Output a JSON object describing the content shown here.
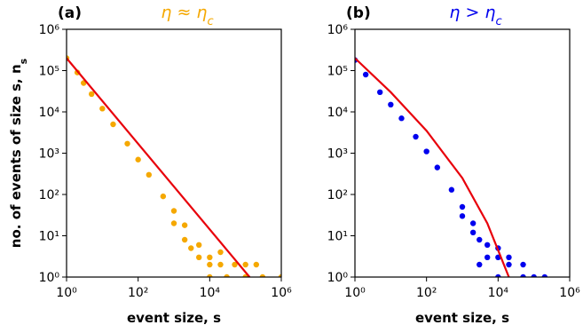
{
  "chart_data": [
    {
      "type": "scatter",
      "panel": "(a)",
      "title": [
        "η ≈ η",
        "c"
      ],
      "title_color": "#f5a800",
      "xlabel": "event size, s",
      "ylabel": [
        "no. of events of size s, n",
        "s"
      ],
      "log_x": true,
      "log_y": true,
      "xlim": [
        1,
        1000000
      ],
      "ylim": [
        1,
        1000000
      ],
      "xticks": [
        {
          "value": 1,
          "label": "10⁰"
        },
        {
          "value": 100,
          "label": "10²"
        },
        {
          "value": 10000,
          "label": "10⁴"
        },
        {
          "value": 1000000,
          "label": "10⁶"
        }
      ],
      "yticks": [
        {
          "value": 1,
          "label": "10⁰"
        },
        {
          "value": 10,
          "label": "10¹"
        },
        {
          "value": 100,
          "label": "10²"
        },
        {
          "value": 1000,
          "label": "10³"
        },
        {
          "value": 10000,
          "label": "10⁴"
        },
        {
          "value": 100000,
          "label": "10⁵"
        },
        {
          "value": 1000000,
          "label": "10⁶"
        }
      ],
      "series": [
        {
          "kind": "scatter",
          "color": "#f5a800",
          "x": [
            1,
            2,
            3,
            5,
            10,
            20,
            50,
            100,
            200,
            500,
            1000,
            1000,
            2000,
            2000,
            3000,
            5000,
            5000,
            10000,
            10000,
            20000,
            20000,
            50000,
            100000,
            200000,
            10000,
            30000,
            100000,
            300000,
            1000000
          ],
          "values": [
            200000,
            90000,
            50000,
            27000,
            12000,
            5000,
            1700,
            700,
            300,
            90,
            40,
            20,
            18,
            8,
            5,
            6,
            3,
            3,
            2,
            2,
            4,
            2,
            2,
            2,
            1,
            1,
            1,
            1,
            1
          ]
        },
        {
          "kind": "line",
          "color": "#e8000b",
          "x": [
            1,
            130000
          ],
          "values": [
            200000,
            1
          ]
        }
      ]
    },
    {
      "type": "scatter",
      "panel": "(b)",
      "title": [
        "η > η",
        "c"
      ],
      "title_color": "#0000ee",
      "xlabel": "event size, s",
      "log_x": true,
      "log_y": true,
      "xlim": [
        1,
        1000000
      ],
      "ylim": [
        1,
        1000000
      ],
      "xticks": [
        {
          "value": 1,
          "label": "10⁰"
        },
        {
          "value": 100,
          "label": "10²"
        },
        {
          "value": 10000,
          "label": "10⁴"
        },
        {
          "value": 1000000,
          "label": "10⁶"
        }
      ],
      "yticks": [
        {
          "value": 1,
          "label": "10⁰"
        },
        {
          "value": 10,
          "label": "10¹"
        },
        {
          "value": 100,
          "label": "10²"
        },
        {
          "value": 1000,
          "label": "10³"
        },
        {
          "value": 10000,
          "label": "10⁴"
        },
        {
          "value": 100000,
          "label": "10⁵"
        },
        {
          "value": 1000000,
          "label": "10⁶"
        }
      ],
      "series": [
        {
          "kind": "scatter",
          "color": "#0000ee",
          "x": [
            1,
            2,
            5,
            10,
            20,
            50,
            100,
            200,
            500,
            1000,
            1000,
            2000,
            2000,
            3000,
            5000,
            5000,
            10000,
            10000,
            20000,
            20000,
            50000,
            3000,
            10000,
            50000,
            100000,
            200000
          ],
          "values": [
            180000,
            80000,
            30000,
            15000,
            7000,
            2500,
            1100,
            450,
            130,
            50,
            30,
            20,
            12,
            8,
            6,
            3,
            3,
            5,
            2,
            3,
            2,
            2,
            1,
            1,
            1,
            1
          ]
        },
        {
          "kind": "line",
          "color": "#e8000b",
          "x": [
            1,
            10,
            100,
            1000,
            5000,
            20000
          ],
          "values": [
            200000,
            30000,
            3500,
            250,
            20,
            1
          ]
        }
      ]
    }
  ]
}
